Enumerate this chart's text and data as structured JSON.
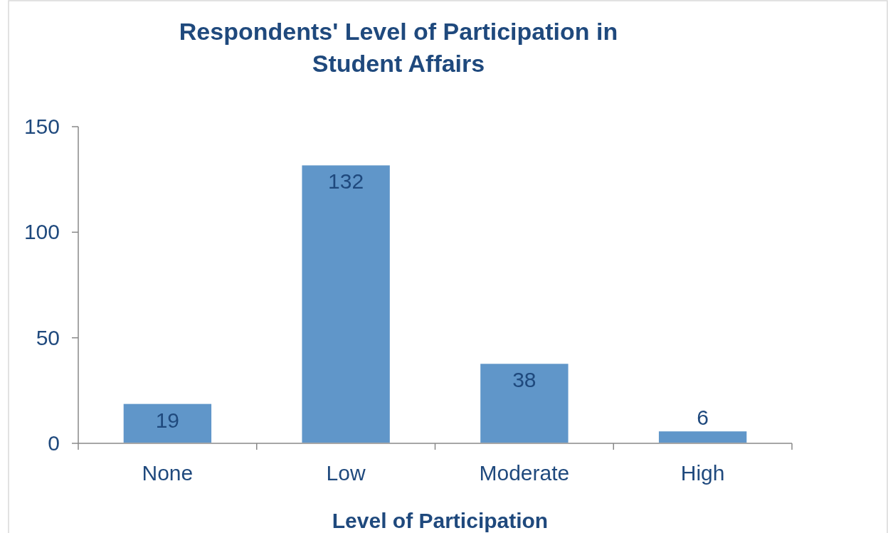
{
  "chart_data": {
    "type": "bar",
    "title": "Respondents' Level of Participation in Student Affairs",
    "xlabel": "Level of Participation",
    "categories": [
      "None",
      "Low",
      "Moderate",
      "High"
    ],
    "values": [
      19,
      132,
      38,
      6
    ],
    "color": "#6096c9",
    "ylim": [
      0,
      150
    ],
    "yticks": [
      0,
      50,
      100,
      150
    ],
    "data_labels": true
  }
}
